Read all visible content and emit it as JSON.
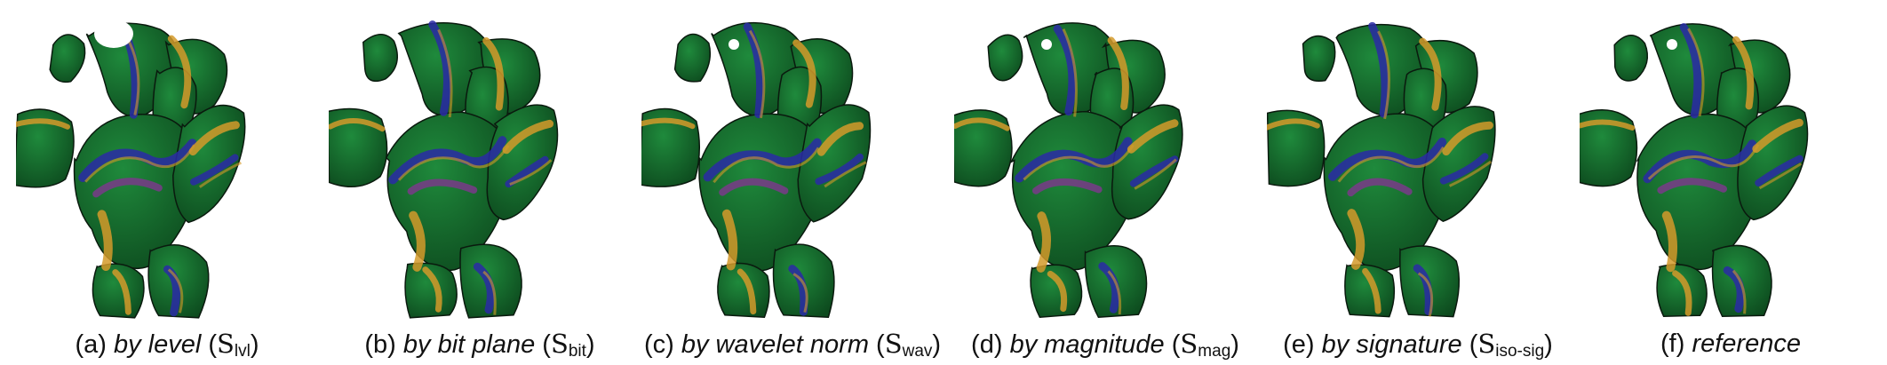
{
  "panels": [
    {
      "letter": "(a)",
      "method": "by level",
      "symbol": "S",
      "subscript": "lvl",
      "has_symbol": true,
      "variant": 0
    },
    {
      "letter": "(b)",
      "method": "by bit plane",
      "symbol": "S",
      "subscript": "bit",
      "has_symbol": true,
      "variant": 1
    },
    {
      "letter": "(c)",
      "method": "by wavelet norm",
      "symbol": "S",
      "subscript": "wav",
      "has_symbol": true,
      "variant": 2
    },
    {
      "letter": "(d)",
      "method": "by magnitude",
      "symbol": "S",
      "subscript": "mag",
      "has_symbol": true,
      "variant": 3
    },
    {
      "letter": "(e)",
      "method": "by signature",
      "symbol": "S",
      "subscript": "iso-sig",
      "has_symbol": true,
      "variant": 4
    },
    {
      "letter": "(f)",
      "method": "reference",
      "symbol": "",
      "subscript": "",
      "has_symbol": false,
      "variant": 5
    }
  ],
  "colors": {
    "surface_green": "#1f8a3c",
    "surface_green_dark": "#0d4a1e",
    "band_blue": "#2a2aa6",
    "band_purple": "#7a3a8a",
    "band_orange": "#d49a2a",
    "edge_dark": "#0a1a0e"
  }
}
